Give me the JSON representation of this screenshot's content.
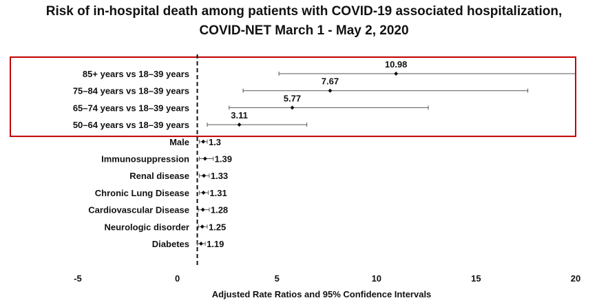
{
  "chart_data": {
    "type": "forest",
    "title": "Risk of in-hospital death among patients with COVID-19 associated hospitalization,",
    "subtitle": "COVID-NET March 1 - May 2, 2020",
    "xlabel": "Adjusted Rate Ratios and 95% Confidence Intervals",
    "xlim": [
      -5,
      20
    ],
    "xticks": [
      -5,
      0,
      5,
      10,
      15,
      20
    ],
    "reference_line": 1,
    "highlight_box_color": "#c00000",
    "rows": [
      {
        "label": "85+ years vs 18–39 years",
        "value": 10.98,
        "value_label": "10.98",
        "ci": [
          5.1,
          20.0
        ],
        "highlight": true
      },
      {
        "label": "75–84 years vs 18–39 years",
        "value": 7.67,
        "value_label": "7.67",
        "ci": [
          3.3,
          17.6
        ],
        "highlight": true
      },
      {
        "label": "65–74 years vs 18–39 years",
        "value": 5.77,
        "value_label": "5.77",
        "ci": [
          2.6,
          12.6
        ],
        "highlight": true
      },
      {
        "label": "50–64 years vs 18–39 years",
        "value": 3.11,
        "value_label": "3.11",
        "ci": [
          1.5,
          6.5
        ],
        "highlight": true
      },
      {
        "label": "Male",
        "value": 1.3,
        "value_label": "1.3",
        "ci": [
          1.1,
          1.5
        ],
        "highlight": false
      },
      {
        "label": "Immunosuppression",
        "value": 1.39,
        "value_label": "1.39",
        "ci": [
          1.1,
          1.8
        ],
        "highlight": false
      },
      {
        "label": "Renal disease",
        "value": 1.33,
        "value_label": "1.33",
        "ci": [
          1.1,
          1.6
        ],
        "highlight": false
      },
      {
        "label": "Chronic Lung Disease",
        "value": 1.31,
        "value_label": "1.31",
        "ci": [
          1.1,
          1.55
        ],
        "highlight": false
      },
      {
        "label": "Cardiovascular Disease",
        "value": 1.28,
        "value_label": "1.28",
        "ci": [
          1.05,
          1.6
        ],
        "highlight": false
      },
      {
        "label": "Neurologic disorder",
        "value": 1.25,
        "value_label": "1.25",
        "ci": [
          1.05,
          1.5
        ],
        "highlight": false
      },
      {
        "label": "Diabetes",
        "value": 1.19,
        "value_label": "1.19",
        "ci": [
          1.0,
          1.4
        ],
        "highlight": false
      }
    ]
  }
}
